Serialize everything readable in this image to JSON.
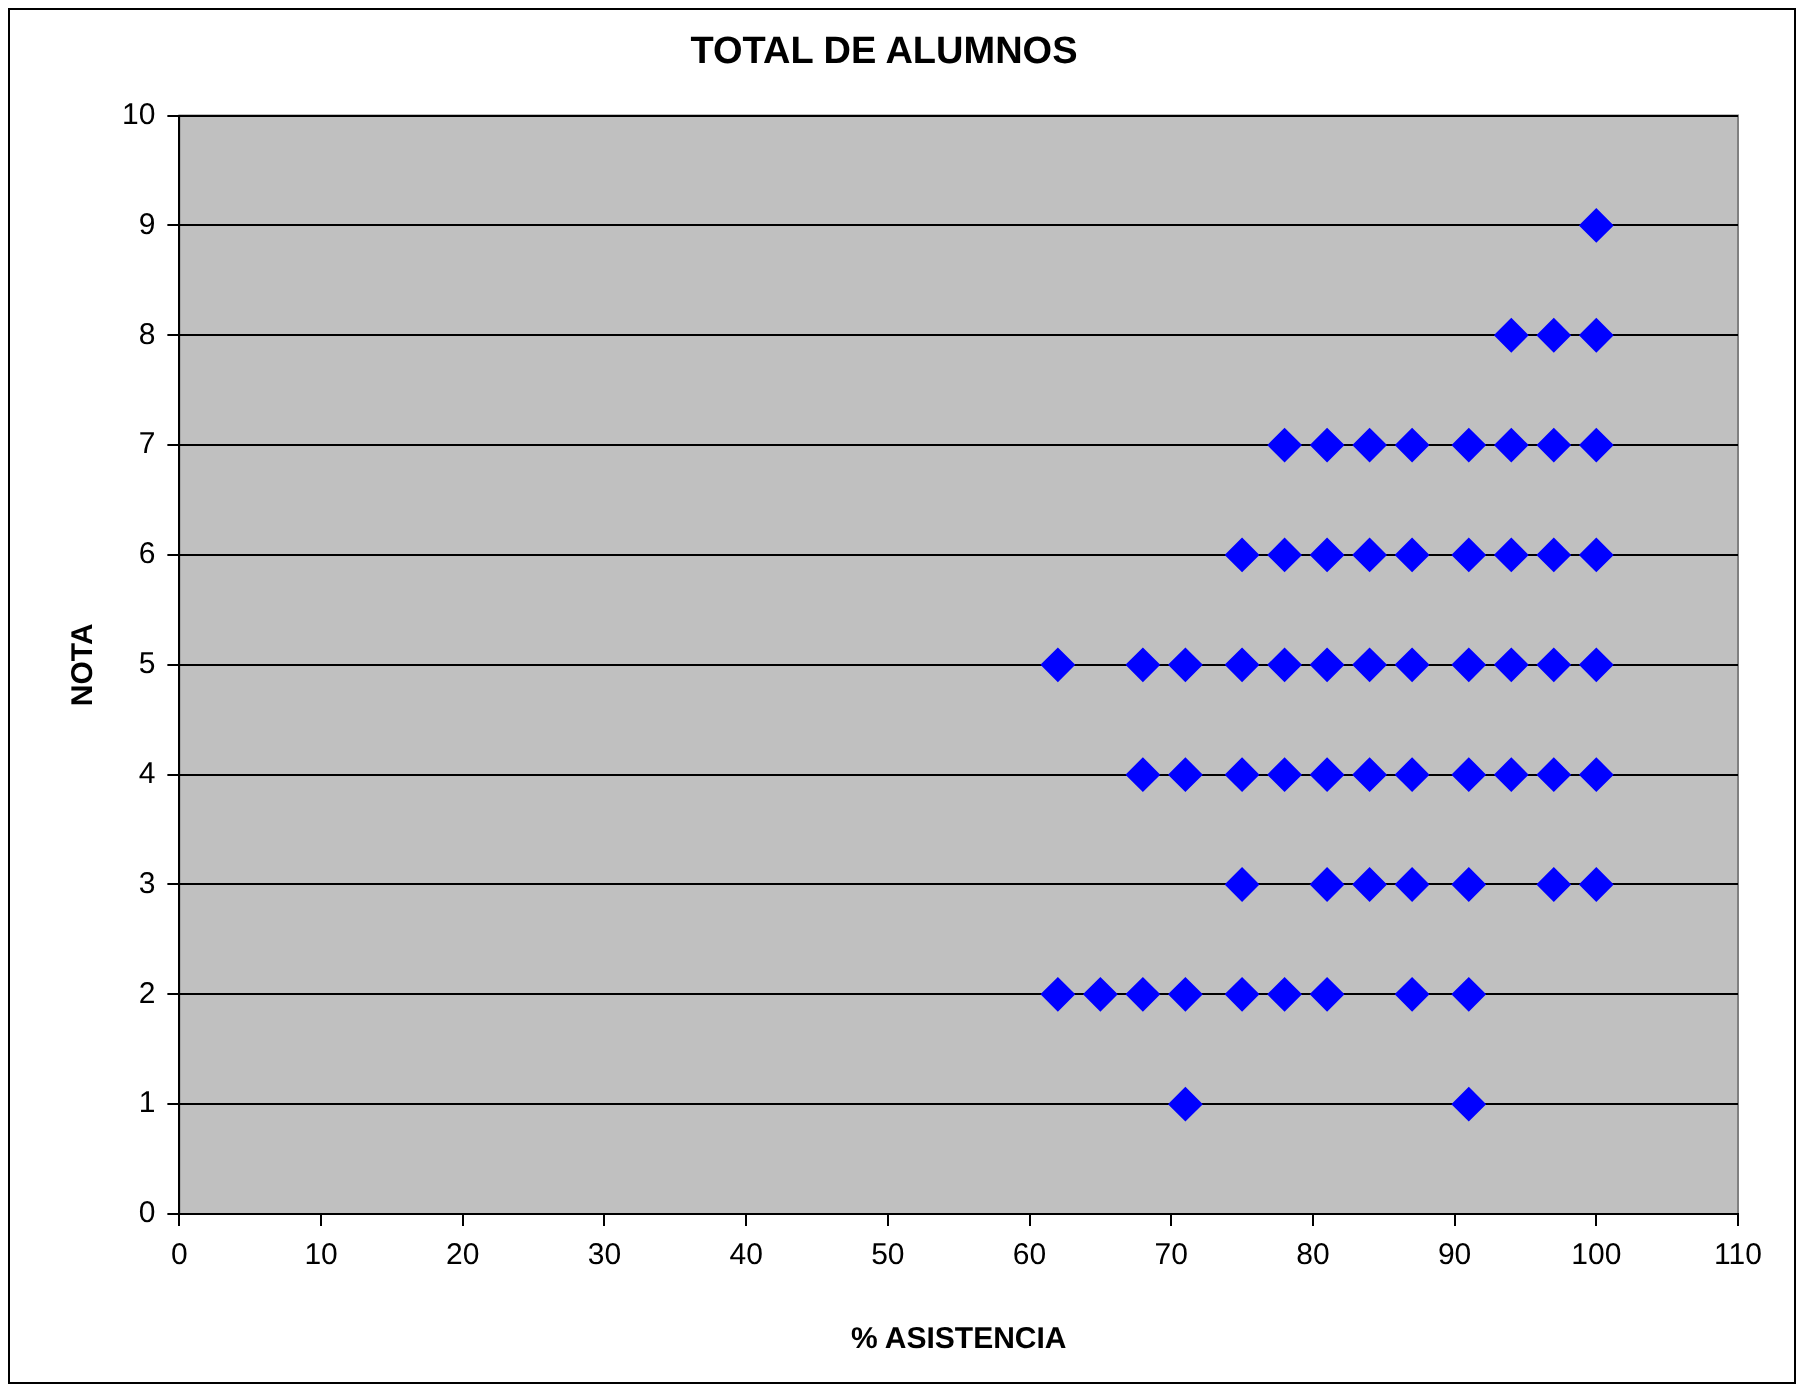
{
  "chart_data": {
    "type": "scatter",
    "title": "TOTAL DE ALUMNOS",
    "xlabel": "% ASISTENCIA",
    "ylabel": "NOTA",
    "xlim": [
      0,
      110
    ],
    "xticks": [
      0,
      10,
      20,
      30,
      40,
      50,
      60,
      70,
      80,
      90,
      100,
      110
    ],
    "ylim": [
      0,
      10
    ],
    "yticks": [
      0,
      1,
      2,
      3,
      4,
      5,
      6,
      7,
      8,
      9,
      10
    ],
    "grid": "y",
    "legend": false,
    "marker": "diamond",
    "series": [
      {
        "color": "#0000ff",
        "x": [
          100,
          94,
          97,
          100,
          78,
          81,
          84,
          87,
          91,
          94,
          97,
          100,
          75,
          78,
          81,
          84,
          87,
          91,
          94,
          97,
          100,
          62,
          68,
          71,
          75,
          78,
          81,
          84,
          87,
          91,
          94,
          97,
          100,
          68,
          71,
          75,
          78,
          81,
          84,
          87,
          91,
          94,
          97,
          100,
          75,
          81,
          84,
          87,
          91,
          97,
          100,
          62,
          65,
          68,
          71,
          75,
          78,
          81,
          87,
          91,
          71,
          91
        ],
        "values": [
          9,
          8,
          8,
          8,
          7,
          7,
          7,
          7,
          7,
          7,
          7,
          7,
          6,
          6,
          6,
          6,
          6,
          6,
          6,
          6,
          6,
          5,
          5,
          5,
          5,
          5,
          5,
          5,
          5,
          5,
          5,
          5,
          5,
          4,
          4,
          4,
          4,
          4,
          4,
          4,
          4,
          4,
          4,
          4,
          3,
          3,
          3,
          3,
          3,
          3,
          3,
          2,
          2,
          2,
          2,
          2,
          2,
          2,
          2,
          2,
          1,
          1
        ]
      }
    ]
  }
}
